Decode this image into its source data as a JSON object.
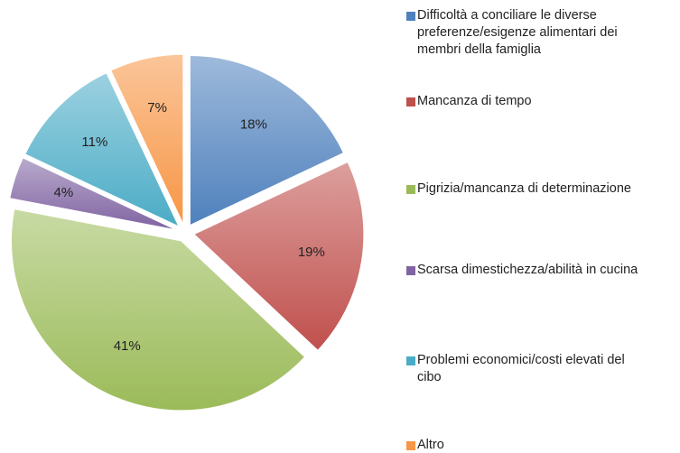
{
  "chart_data": {
    "type": "pie",
    "categories": [
      "Difficoltà a conciliare le diverse preferenze/esigenze alimentari dei membri della famiglia",
      "Mancanza di tempo",
      "Pigrizia/mancanza di determinazione",
      "Scarsa dimestichezza/abilità in cucina",
      "Problemi economici/costi elevati del cibo",
      "Altro"
    ],
    "values": [
      18,
      19,
      41,
      4,
      11,
      7
    ],
    "value_labels": [
      "18%",
      "19%",
      "41%",
      "4%",
      "11%",
      "7%"
    ],
    "colors": [
      "#4f81bd",
      "#c0504d",
      "#9bbb59",
      "#8064a2",
      "#4bacc6",
      "#f79646"
    ],
    "legend": "right"
  }
}
